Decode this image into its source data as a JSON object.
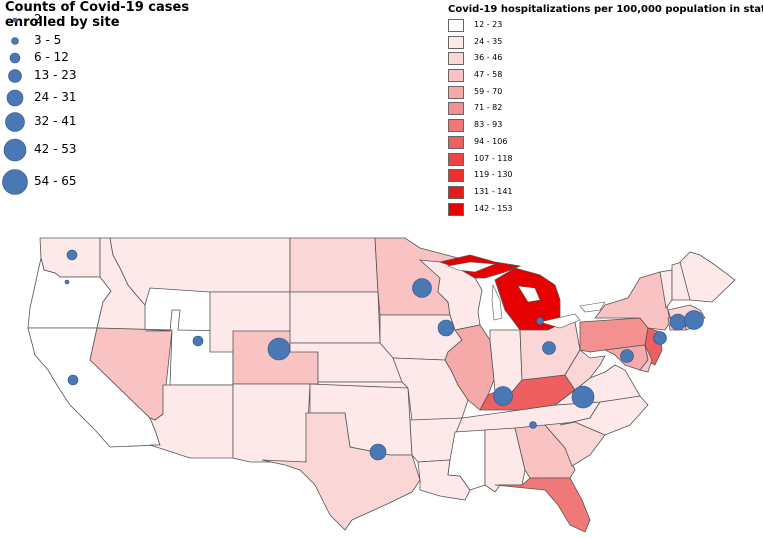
{
  "size_legend": {
    "title": "Counts of Covid-19 cases enrolled by site",
    "items": [
      {
        "label": "2",
        "radius": 2
      },
      {
        "label": "3 - 5",
        "radius": 3.5
      },
      {
        "label": "6 - 12",
        "radius": 5
      },
      {
        "label": "13 - 23",
        "radius": 6.5
      },
      {
        "label": "24 - 31",
        "radius": 8
      },
      {
        "label": "32 - 41",
        "radius": 9.5
      },
      {
        "label": "42 - 53",
        "radius": 11
      },
      {
        "label": "54 - 65",
        "radius": 12.5
      }
    ],
    "marker_color": "#4a78b5"
  },
  "color_legend": {
    "title": "Covid-19 hospitalizations per 100,000 population in state",
    "items": [
      {
        "label": "12 - 23",
        "color": "#ffffff"
      },
      {
        "label": "24 - 35",
        "color": "#fde9e9"
      },
      {
        "label": "36 - 46",
        "color": "#fbd6d6"
      },
      {
        "label": "47 - 58",
        "color": "#f9c3c3"
      },
      {
        "label": "59 - 70",
        "color": "#f6a9a9"
      },
      {
        "label": "71 - 82",
        "color": "#f39090"
      },
      {
        "label": "83 - 93",
        "color": "#f07878"
      },
      {
        "label": "94 - 106",
        "color": "#ee5f5f"
      },
      {
        "label": "107 - 118",
        "color": "#ec4545"
      },
      {
        "label": "119 - 130",
        "color": "#ea2f2f"
      },
      {
        "label": "131 - 141",
        "color": "#e71a1a"
      },
      {
        "label": "142 - 153",
        "color": "#e60000"
      }
    ]
  },
  "states": [
    {
      "name": "WA",
      "bin": 1
    },
    {
      "name": "OR",
      "bin": 0
    },
    {
      "name": "CA",
      "bin": 0
    },
    {
      "name": "ID",
      "bin": 1
    },
    {
      "name": "NV",
      "bin": 3
    },
    {
      "name": "UT",
      "bin": 0
    },
    {
      "name": "AZ",
      "bin": 1
    },
    {
      "name": "MT",
      "bin": 1
    },
    {
      "name": "WY",
      "bin": 1
    },
    {
      "name": "CO",
      "bin": 3
    },
    {
      "name": "NM",
      "bin": 1
    },
    {
      "name": "ND",
      "bin": 2
    },
    {
      "name": "SD",
      "bin": 1
    },
    {
      "name": "NE",
      "bin": 1
    },
    {
      "name": "KS",
      "bin": 1
    },
    {
      "name": "OK",
      "bin": 1
    },
    {
      "name": "TX",
      "bin": 2
    },
    {
      "name": "MN",
      "bin": 3
    },
    {
      "name": "IA",
      "bin": 1
    },
    {
      "name": "MO",
      "bin": 1
    },
    {
      "name": "AR",
      "bin": 1
    },
    {
      "name": "LA",
      "bin": 1
    },
    {
      "name": "WI",
      "bin": 1
    },
    {
      "name": "IL",
      "bin": 4
    },
    {
      "name": "MI",
      "bin": 11
    },
    {
      "name": "IN",
      "bin": 1
    },
    {
      "name": "OH",
      "bin": 2
    },
    {
      "name": "KY",
      "bin": 7
    },
    {
      "name": "TN",
      "bin": 1
    },
    {
      "name": "MS",
      "bin": 0
    },
    {
      "name": "AL",
      "bin": 1
    },
    {
      "name": "GA",
      "bin": 3
    },
    {
      "name": "FL",
      "bin": 6
    },
    {
      "name": "SC",
      "bin": 2
    },
    {
      "name": "NC",
      "bin": 1
    },
    {
      "name": "VA",
      "bin": 1
    },
    {
      "name": "WV",
      "bin": 2
    },
    {
      "name": "PA",
      "bin": 5
    },
    {
      "name": "NY",
      "bin": 3
    },
    {
      "name": "NJ",
      "bin": 7
    },
    {
      "name": "MD",
      "bin": 4
    },
    {
      "name": "DE",
      "bin": 3
    },
    {
      "name": "VT",
      "bin": 1
    },
    {
      "name": "NH",
      "bin": 1
    },
    {
      "name": "ME",
      "bin": 1
    },
    {
      "name": "MA",
      "bin": 2
    },
    {
      "name": "CT",
      "bin": 3
    },
    {
      "name": "RI",
      "bin": 2
    }
  ],
  "sites": [
    {
      "state": "WA",
      "count_bin": 2
    },
    {
      "state": "OR",
      "count_bin": 0
    },
    {
      "state": "CA",
      "count_bin": 2
    },
    {
      "state": "UT",
      "count_bin": 2
    },
    {
      "state": "CO",
      "count_bin": 6
    },
    {
      "state": "MN",
      "count_bin": 5
    },
    {
      "state": "IA",
      "count_bin": 4
    },
    {
      "state": "MI",
      "count_bin": 1
    },
    {
      "state": "OH",
      "count_bin": 3
    },
    {
      "state": "TN",
      "count_bin": 5
    },
    {
      "state": "GA",
      "count_bin": 1
    },
    {
      "state": "TX",
      "count_bin": 4
    },
    {
      "state": "NC",
      "count_bin": 6
    },
    {
      "state": "MD",
      "count_bin": 3
    },
    {
      "state": "NJ",
      "count_bin": 3
    },
    {
      "state": "NY",
      "count_bin": 4
    },
    {
      "state": "MA",
      "count_bin": 5
    }
  ]
}
